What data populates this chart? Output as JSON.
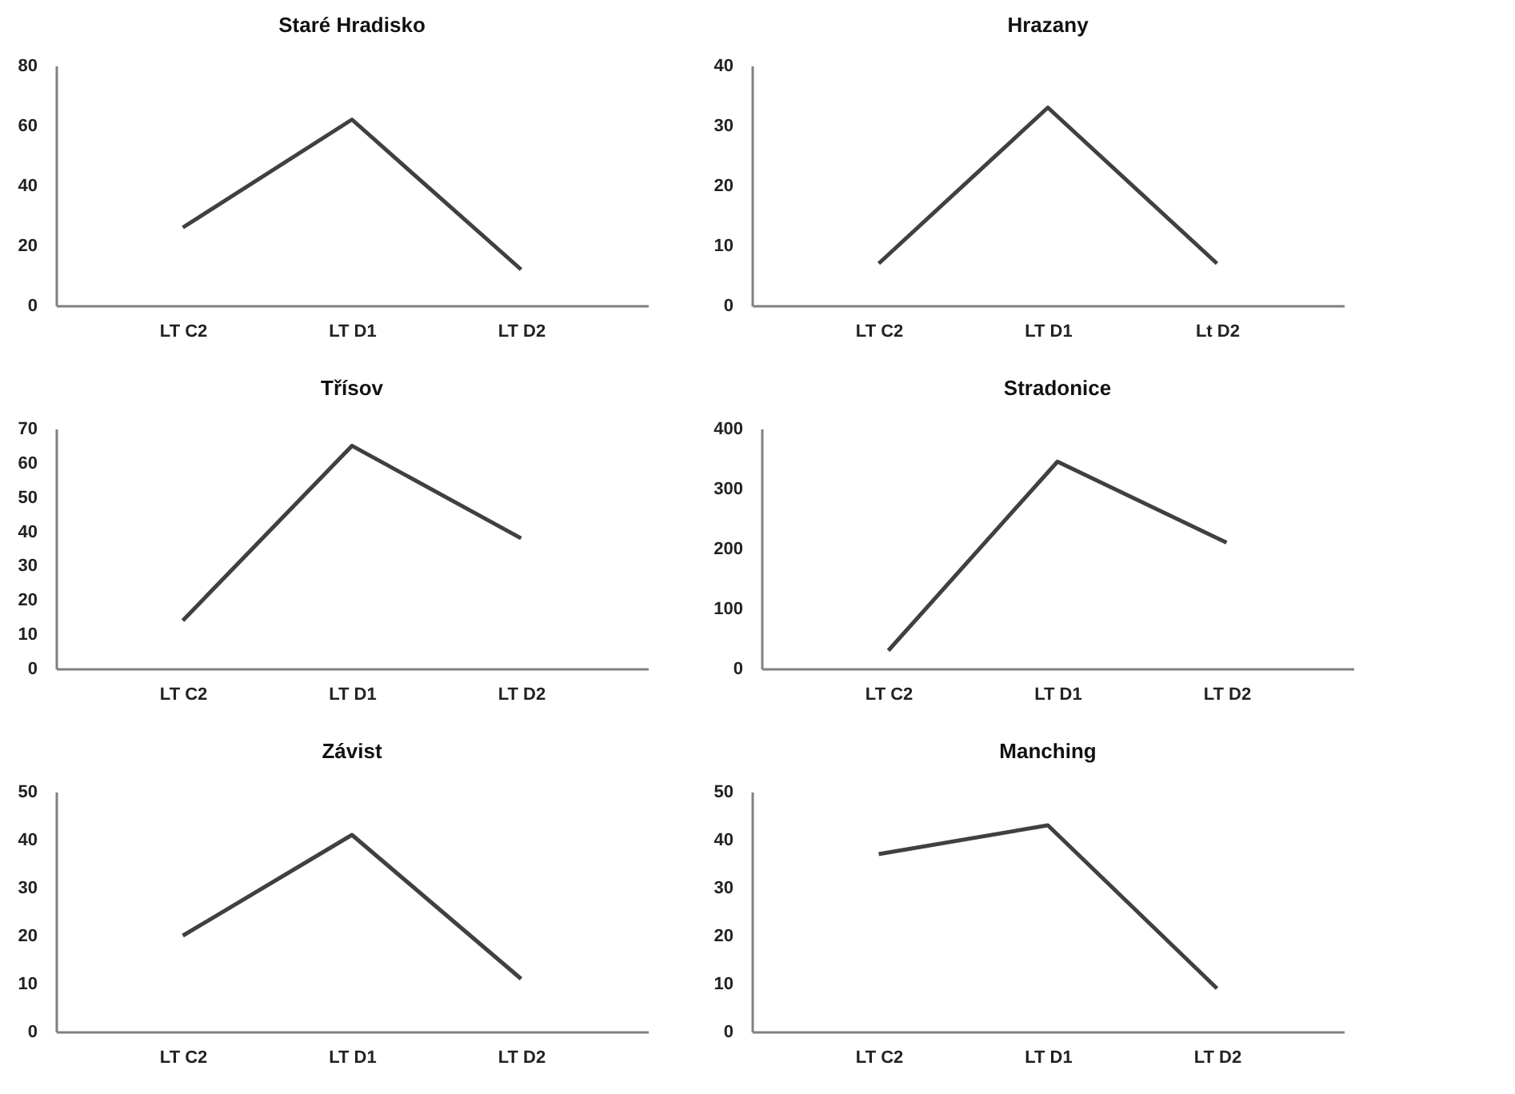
{
  "chart_data": [
    {
      "type": "line",
      "title": "Staré Hradisko",
      "categories": [
        "LT C2",
        "LT D1",
        "LT D2"
      ],
      "series": [
        {
          "color": "#404040",
          "values": [
            26,
            62,
            12
          ]
        }
      ],
      "ylim": [
        0,
        80
      ],
      "yticks": [
        0,
        20,
        40,
        60,
        80
      ],
      "grid": false,
      "marker": "none",
      "line_style": "solid"
    },
    {
      "type": "line",
      "title": "Hrazany",
      "categories": [
        "LT C2",
        "LT D1",
        "Lt D2"
      ],
      "series": [
        {
          "color": "#404040",
          "values": [
            7,
            33,
            7
          ]
        }
      ],
      "ylim": [
        0,
        40
      ],
      "yticks": [
        0,
        10,
        20,
        30,
        40
      ],
      "grid": false,
      "marker": "none",
      "line_style": "solid"
    },
    {
      "type": "line",
      "title": "Třísov",
      "categories": [
        "LT C2",
        "LT D1",
        "LT D2"
      ],
      "series": [
        {
          "color": "#404040",
          "values": [
            14,
            65,
            38
          ]
        }
      ],
      "ylim": [
        0,
        70
      ],
      "yticks": [
        0,
        10,
        20,
        30,
        40,
        50,
        60,
        70
      ],
      "grid": false,
      "marker": "none",
      "line_style": "solid"
    },
    {
      "type": "line",
      "title": "Stradonice",
      "categories": [
        "LT C2",
        "LT D1",
        "LT D2"
      ],
      "series": [
        {
          "color": "#404040",
          "values": [
            30,
            345,
            210
          ]
        }
      ],
      "ylim": [
        0,
        400
      ],
      "yticks": [
        0,
        100,
        200,
        300,
        400
      ],
      "grid": false,
      "marker": "none",
      "line_style": "solid"
    },
    {
      "type": "line",
      "title": "Závist",
      "categories": [
        "LT C2",
        "LT D1",
        "LT D2"
      ],
      "series": [
        {
          "color": "#404040",
          "values": [
            20,
            41,
            11
          ]
        }
      ],
      "ylim": [
        0,
        50
      ],
      "yticks": [
        0,
        10,
        20,
        30,
        40,
        50
      ],
      "grid": false,
      "marker": "none",
      "line_style": "solid"
    },
    {
      "type": "line",
      "title": "Manching",
      "categories": [
        "LT C2",
        "LT D1",
        "LT D2"
      ],
      "series": [
        {
          "color": "#404040",
          "values": [
            37,
            43,
            9
          ]
        }
      ],
      "ylim": [
        0,
        50
      ],
      "yticks": [
        0,
        10,
        20,
        30,
        40,
        50
      ],
      "grid": false,
      "marker": "none",
      "line_style": "solid"
    }
  ]
}
